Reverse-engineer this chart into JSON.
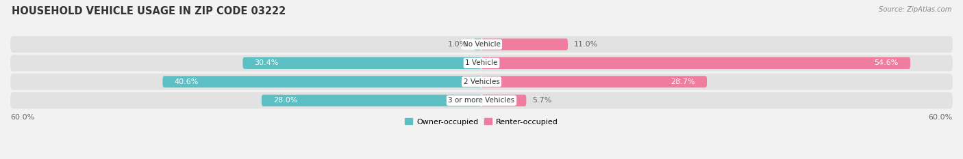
{
  "title": "HOUSEHOLD VEHICLE USAGE IN ZIP CODE 03222",
  "source": "Source: ZipAtlas.com",
  "categories": [
    "No Vehicle",
    "1 Vehicle",
    "2 Vehicles",
    "3 or more Vehicles"
  ],
  "owner_values": [
    1.0,
    30.4,
    40.6,
    28.0
  ],
  "renter_values": [
    11.0,
    54.6,
    28.7,
    5.7
  ],
  "owner_color": "#5bbfc4",
  "renter_color": "#f07ca0",
  "axis_max": 60.0,
  "legend_owner": "Owner-occupied",
  "legend_renter": "Renter-occupied",
  "bg_color": "#f2f2f2",
  "bar_bg_color": "#e2e2e2",
  "label_dark": "#666666",
  "label_white": "#ffffff",
  "title_fontsize": 10.5,
  "label_fontsize": 8.0,
  "bar_height": 0.62,
  "bg_bar_height": 0.88,
  "white_inside_threshold_owner": 15.0,
  "white_inside_threshold_renter": 15.0
}
